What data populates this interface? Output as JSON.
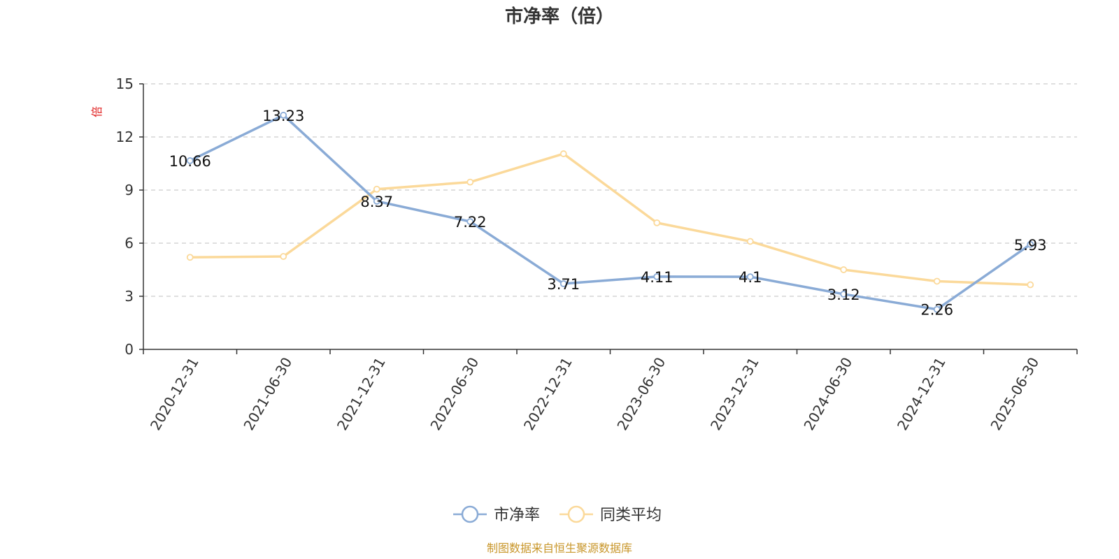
{
  "chart_data": {
    "type": "line",
    "title": "市净率（倍）",
    "ylabel": "倍",
    "source": "制图数据来自恒生聚源数据库",
    "categories": [
      "2020-12-31",
      "2021-06-30",
      "2021-12-31",
      "2022-06-30",
      "2022-12-31",
      "2023-06-30",
      "2023-12-31",
      "2024-06-30",
      "2024-12-31",
      "2025-06-30"
    ],
    "ylim": [
      0,
      15
    ],
    "yticks": [
      0,
      3,
      6,
      9,
      12,
      15
    ],
    "grid": true,
    "legend_position": "bottom-center",
    "series": [
      {
        "name": "市净率",
        "color": "#8aabd6",
        "values": [
          10.66,
          13.23,
          8.37,
          7.22,
          3.71,
          4.11,
          4.1,
          3.12,
          2.26,
          5.93
        ],
        "labels": [
          "10.66",
          "13.23",
          "8.37",
          "7.22",
          "3.71",
          "4.11",
          "4.1",
          "3.12",
          "2.26",
          "5.93"
        ]
      },
      {
        "name": "同类平均",
        "color": "#fbd99a",
        "values": [
          5.2,
          5.25,
          9.05,
          9.45,
          11.05,
          7.15,
          6.1,
          4.5,
          3.85,
          3.65
        ]
      }
    ]
  },
  "colors": {
    "ylabel": "#e02020",
    "source": "#c8962a"
  }
}
